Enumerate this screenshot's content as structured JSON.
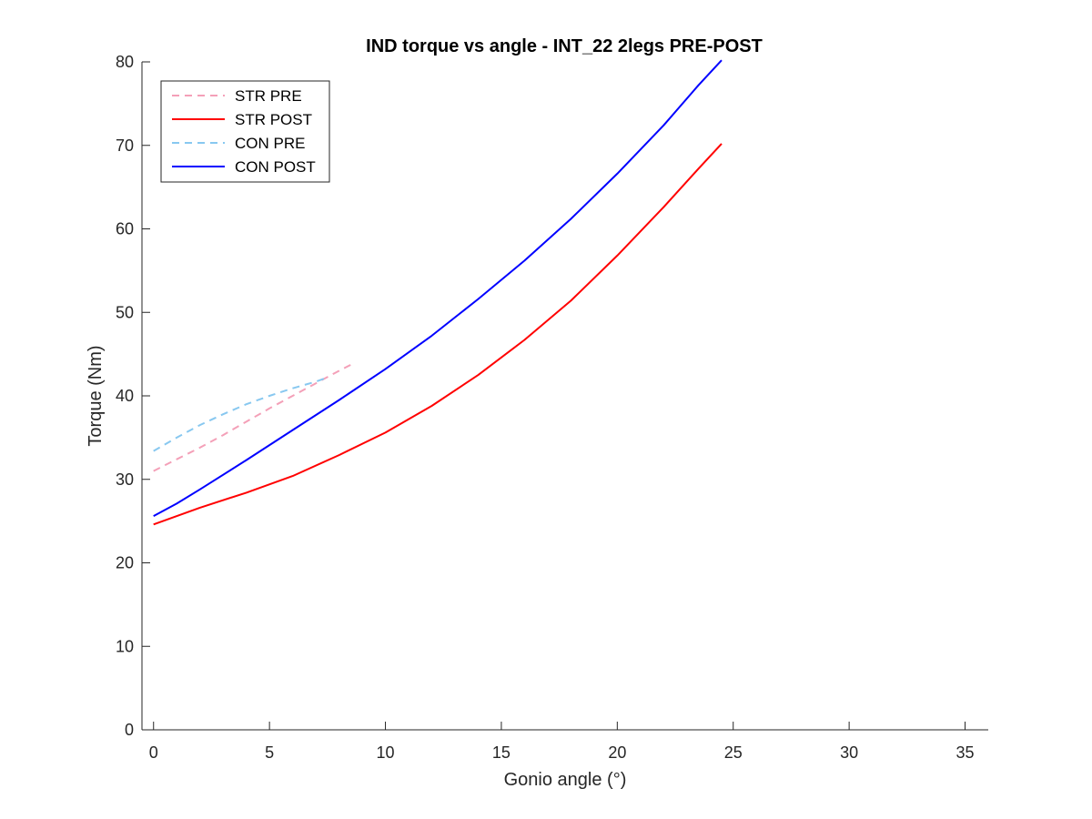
{
  "chart_data": {
    "type": "line",
    "title": "IND torque vs angle - INT_22 2legs PRE-POST",
    "xlabel": "Gonio angle (°)",
    "ylabel": "Torque (Nm)",
    "xlim": [
      -0.5,
      36
    ],
    "ylim": [
      0,
      80
    ],
    "xticks": [
      0,
      5,
      10,
      15,
      20,
      25,
      30,
      35
    ],
    "yticks": [
      0,
      10,
      20,
      30,
      40,
      50,
      60,
      70,
      80
    ],
    "grid": false,
    "legend_position": "top-left",
    "series": [
      {
        "name": "STR PRE",
        "color": "#f4a0b8",
        "dash": "dashed",
        "x": [
          0,
          1,
          2,
          3,
          4,
          5,
          6,
          7,
          8,
          8.7
        ],
        "y": [
          31.0,
          32.4,
          33.8,
          35.3,
          36.9,
          38.5,
          40.0,
          41.5,
          43.0,
          44.0
        ]
      },
      {
        "name": "STR POST",
        "color": "#ff0000",
        "dash": "solid",
        "x": [
          0,
          2,
          4,
          6,
          8,
          10,
          12,
          14,
          16,
          18,
          20,
          22,
          23.5,
          24.5
        ],
        "y": [
          24.6,
          26.6,
          28.4,
          30.4,
          32.9,
          35.6,
          38.8,
          42.5,
          46.7,
          51.4,
          56.8,
          62.6,
          67.2,
          70.2
        ]
      },
      {
        "name": "CON PRE",
        "color": "#88c8f0",
        "dash": "dashed",
        "x": [
          0,
          1,
          2,
          3,
          4,
          5,
          6,
          7,
          7.5
        ],
        "y": [
          33.4,
          35.0,
          36.5,
          37.8,
          39.0,
          40.0,
          40.9,
          41.7,
          42.2
        ]
      },
      {
        "name": "CON POST",
        "color": "#0000ff",
        "dash": "solid",
        "x": [
          0,
          1,
          2,
          4,
          6,
          8,
          10,
          12,
          14,
          16,
          18,
          20,
          22,
          23.5,
          24.5
        ],
        "y": [
          25.6,
          27.1,
          28.8,
          32.3,
          35.9,
          39.5,
          43.2,
          47.2,
          51.6,
          56.2,
          61.2,
          66.6,
          72.4,
          77.2,
          80.2
        ]
      }
    ]
  }
}
